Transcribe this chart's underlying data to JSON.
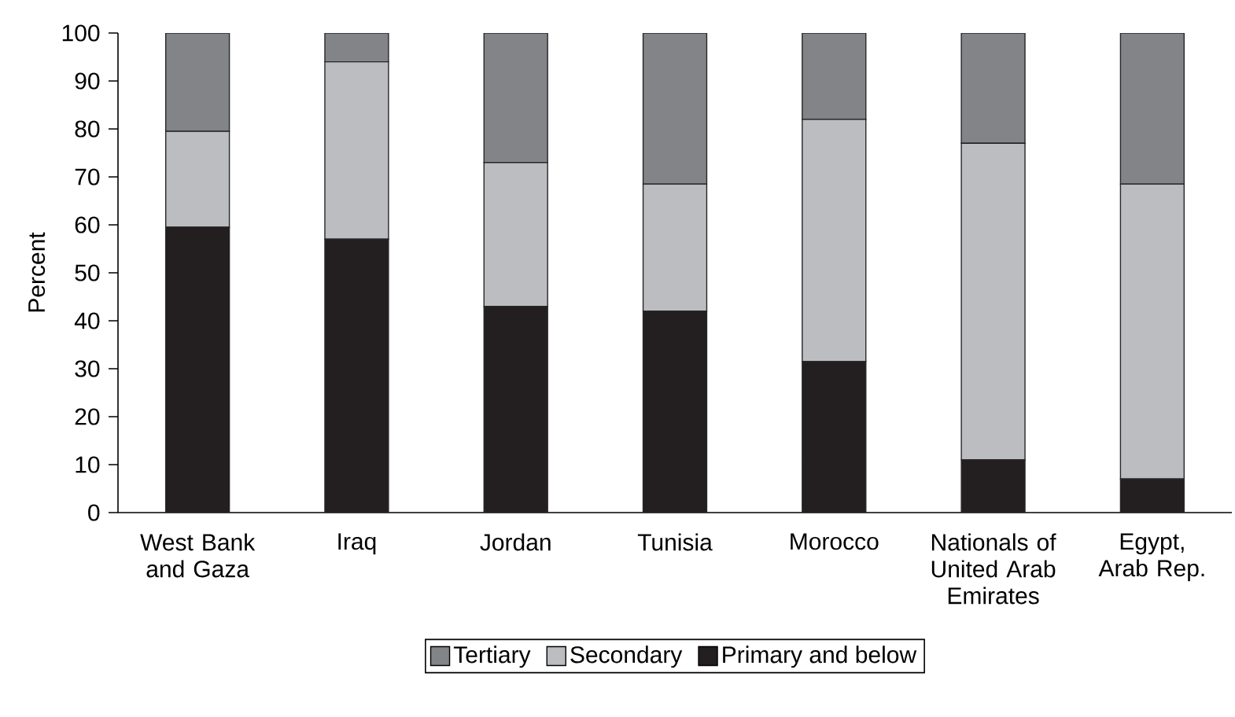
{
  "chart_data": {
    "type": "bar",
    "stacked": true,
    "ylabel": "Percent",
    "categories": [
      "West Bank and Gaza",
      "Iraq",
      "Jordan",
      "Tunisia",
      "Morocco",
      "Nationals of United Arab Emirates",
      "Egypt, Arab Rep."
    ],
    "series": [
      {
        "name": "Primary and below",
        "color": "#231f20",
        "values": [
          59.5,
          57,
          43,
          42,
          31.5,
          11,
          7
        ]
      },
      {
        "name": "Secondary",
        "color": "#bcbdc0",
        "values": [
          20,
          37,
          30,
          26.5,
          50.5,
          66,
          61.5
        ]
      },
      {
        "name": "Tertiary",
        "color": "#838487",
        "values": [
          20.5,
          6,
          27,
          31.5,
          18,
          23,
          31.5
        ]
      }
    ],
    "ylim": [
      0,
      100
    ],
    "yticks": [
      0,
      10,
      20,
      30,
      40,
      50,
      60,
      70,
      80,
      90,
      100
    ],
    "legend": "bottom",
    "grid": false
  }
}
